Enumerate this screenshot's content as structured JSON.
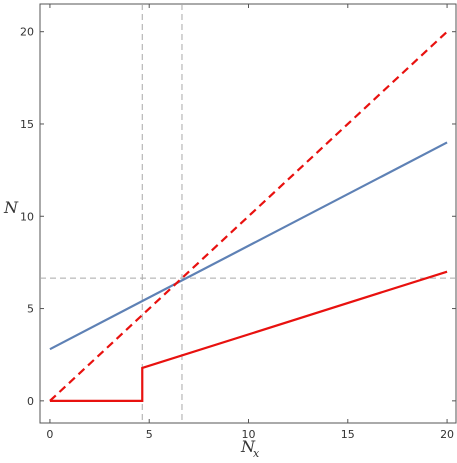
{
  "chart_data": {
    "type": "line",
    "xlabel": "N",
    "xlabel_sub": "x",
    "ylabel": "N",
    "xlim": [
      -0.5,
      20.5
    ],
    "ylim": [
      -1.2,
      21.5
    ],
    "x_ticks": [
      0,
      5,
      10,
      15,
      20
    ],
    "y_ticks": [
      0,
      5,
      10,
      15,
      20
    ],
    "grid": false,
    "colors": {
      "blue": "#5E81B5",
      "red": "#E8110F",
      "reference": "#A9A9A9",
      "frame": "#555555"
    },
    "reference_lines": {
      "vertical_x": [
        4.65,
        6.65
      ],
      "horizontal_y": [
        6.65
      ]
    },
    "series": [
      {
        "style": "solid",
        "color": "blue",
        "points": [
          [
            0,
            2.8
          ],
          [
            20,
            14.0
          ]
        ]
      },
      {
        "style": "dashed",
        "color": "red",
        "points": [
          [
            0,
            0
          ],
          [
            20,
            20
          ]
        ]
      },
      {
        "style": "solid",
        "color": "red",
        "points": [
          [
            0,
            0
          ],
          [
            4.65,
            0
          ],
          [
            4.65,
            1.78
          ],
          [
            20,
            7.0
          ]
        ]
      }
    ]
  }
}
